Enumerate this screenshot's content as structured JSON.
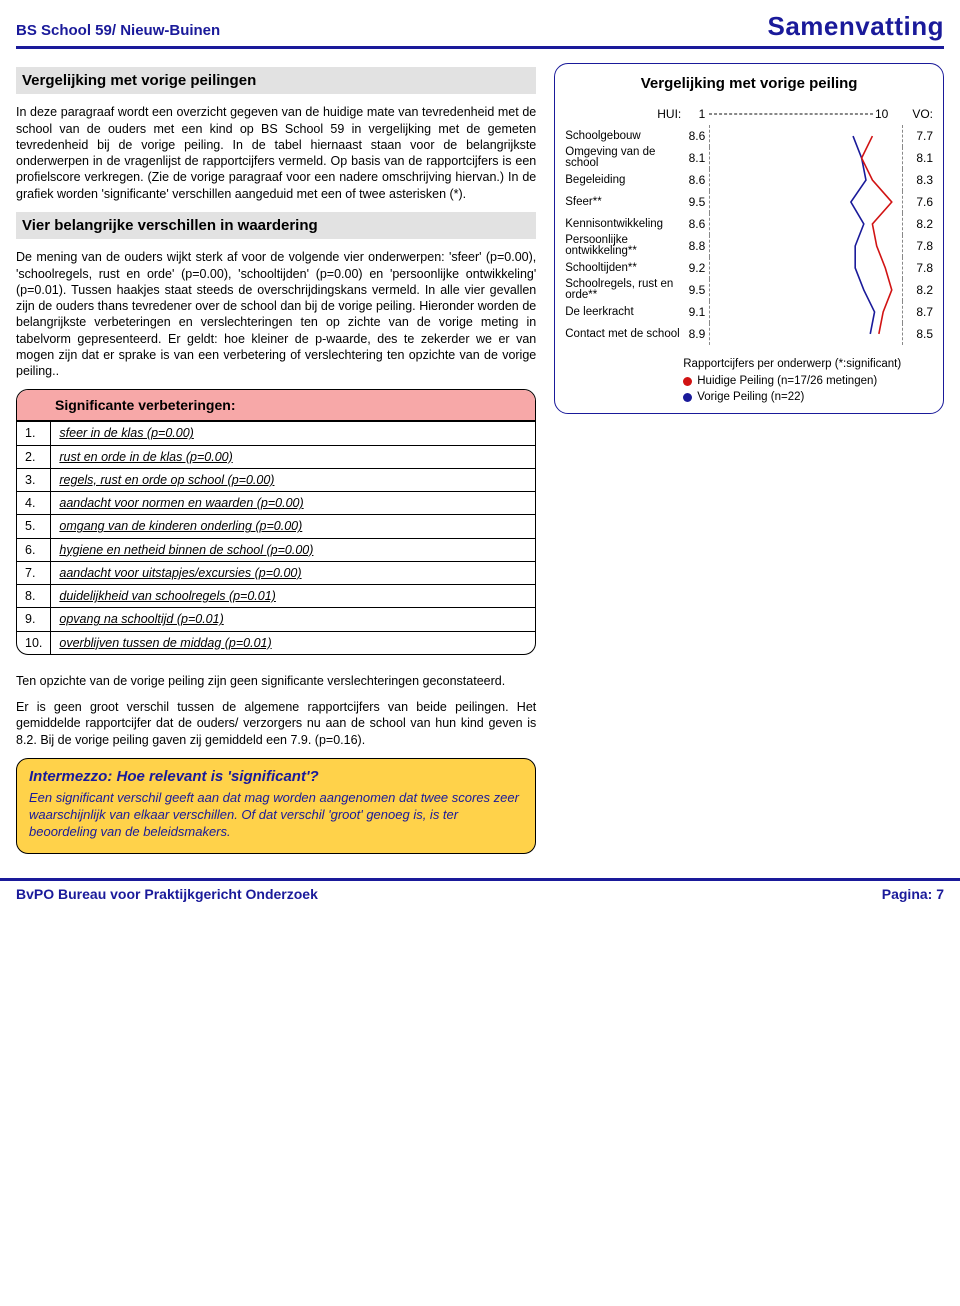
{
  "header": {
    "left": "BS School 59/ Nieuw-Buinen",
    "right": "Samenvatting"
  },
  "left": {
    "h1": "Vergelijking met vorige peilingen",
    "p1": "In deze paragraaf wordt een overzicht gegeven van de huidige mate van tevredenheid met de school van de ouders met een kind op BS School 59 in vergelijking met de gemeten tevredenheid bij de vorige peiling.\nIn de tabel hiernaast staan voor de belangrijkste onderwerpen in de vragenlijst de rapportcijfers vermeld. Op basis van de rapportcijfers is een profielscore verkregen. (Zie de vorige paragraaf voor een nadere omschrijving hiervan.) In de grafiek worden 'significante' verschillen aangeduid met een of twee asterisken (*).",
    "h2": "Vier belangrijke verschillen in waardering",
    "p2": "De mening van de ouders wijkt sterk af voor de volgende vier onderwerpen: 'sfeer' (p=0.00), 'schoolregels, rust en orde' (p=0.00), 'schooltijden' (p=0.00) en 'persoonlijke ontwikkeling' (p=0.01). Tussen haakjes staat steeds de overschrijdingskans vermeld.\nIn alle vier gevallen zijn de ouders thans tevredener over de school dan bij de vorige peiling.\nHieronder worden de belangrijkste verbeteringen en verslechteringen ten op zichte van de vorige meting in tabelvorm gepresenteerd. Er geldt: hoe kleiner de p-waarde, des te zekerder we er van mogen zijn dat er sprake is van een verbetering of verslechtering ten opzichte van de vorige peiling..",
    "tbl_header": "Significante verbeteringen:",
    "rows": [
      {
        "n": "1.",
        "t": "sfeer in de klas (p=0.00)"
      },
      {
        "n": "2.",
        "t": "rust en orde in de klas (p=0.00)"
      },
      {
        "n": "3.",
        "t": "regels, rust en orde op school (p=0.00)"
      },
      {
        "n": "4.",
        "t": "aandacht voor normen en waarden (p=0.00)"
      },
      {
        "n": "5.",
        "t": "omgang van de kinderen onderling (p=0.00)"
      },
      {
        "n": "6.",
        "t": "hygiene en netheid binnen de school (p=0.00)"
      },
      {
        "n": "7.",
        "t": "aandacht voor uitstapjes/excursies (p=0.00)"
      },
      {
        "n": "8.",
        "t": "duidelijkheid van schoolregels (p=0.01)"
      },
      {
        "n": "9.",
        "t": "opvang na schooltijd (p=0.01)"
      },
      {
        "n": "10.",
        "t": "overblijven tussen de middag (p=0.01)"
      }
    ],
    "p3": "Ten opzichte van de vorige peiling zijn geen significante verslechteringen geconstateerd.",
    "p4": "Er is geen groot verschil tussen de algemene rapportcijfers van beide peilingen.\nHet gemiddelde rapportcijfer dat de ouders/ verzorgers nu aan de school van hun kind geven is 8.2. Bij de vorige peiling gaven zij gemiddeld een 7.9. (p=0.16).",
    "intermezzo_h": "Intermezzo: Hoe relevant is 'significant'?",
    "intermezzo_b": "Een significant verschil geeft aan dat mag worden aangenomen dat twee scores zeer waarschijnlijk van elkaar verschillen. Of dat verschil 'groot' genoeg is, is ter beoordeling van de beleidsmakers."
  },
  "chart": {
    "title": "Vergelijking met vorige peiling",
    "axis_left_label": "HUI:",
    "axis_left_min": "1",
    "axis_left_max": "10",
    "axis_right_label": "VO:",
    "xmin": 1,
    "xmax": 10,
    "colors": {
      "hui": "#d11313",
      "vo": "#1a1a9a"
    },
    "rows": [
      {
        "label": "Schoolgebouw",
        "hui": 8.6,
        "vo": 7.7
      },
      {
        "label": "Omgeving van de school",
        "hui": 8.1,
        "vo": 8.1
      },
      {
        "label": "Begeleiding",
        "hui": 8.6,
        "vo": 8.3
      },
      {
        "label": "Sfeer**",
        "hui": 9.5,
        "vo": 7.6
      },
      {
        "label": "Kennisontwikkeling",
        "hui": 8.6,
        "vo": 8.2
      },
      {
        "label": "Persoonlijke ontwikkeling**",
        "hui": 8.8,
        "vo": 7.8
      },
      {
        "label": "Schooltijden**",
        "hui": 9.2,
        "vo": 7.8
      },
      {
        "label": "Schoolregels, rust en orde**",
        "hui": 9.5,
        "vo": 8.2
      },
      {
        "label": "De leerkracht",
        "hui": 9.1,
        "vo": 8.7
      },
      {
        "label": "Contact met de school",
        "hui": 8.9,
        "vo": 8.5
      }
    ],
    "legend_title": "Rapportcijfers per onderwerp (*:significant)",
    "legend_hui": "Huidige Peiling (n=17/26 metingen)",
    "legend_vo": "Vorige Peiling (n=22)"
  },
  "footer": {
    "left": "BvPO Bureau voor Praktijkgericht Onderzoek",
    "right": "Pagina: 7"
  }
}
